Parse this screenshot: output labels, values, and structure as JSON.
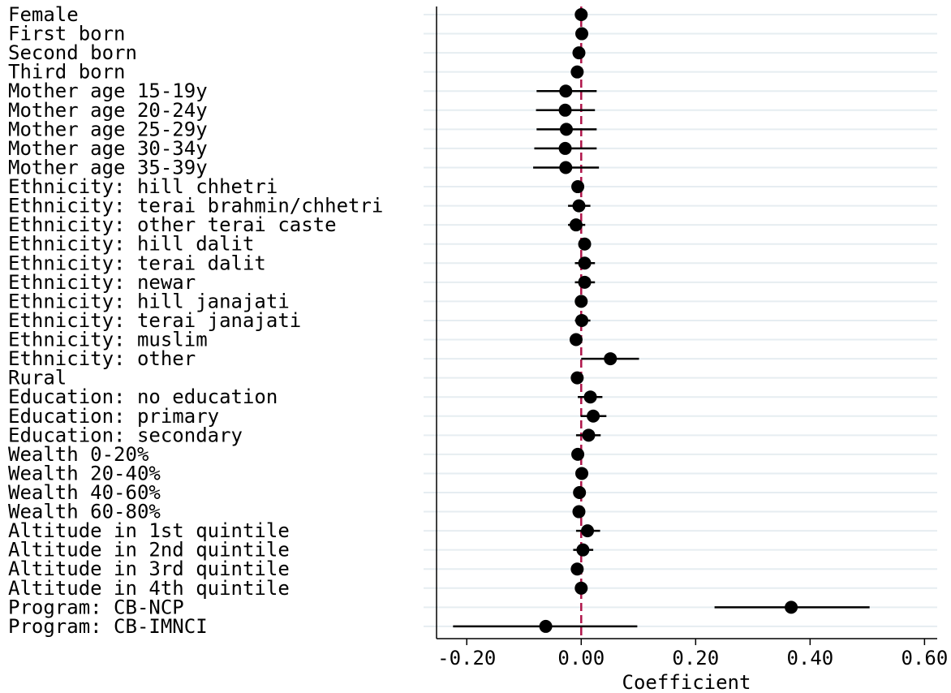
{
  "chart_data": {
    "type": "coefplot",
    "categories": [
      "Female",
      "First born",
      "Second born",
      "Third born",
      "Mother age 15-19y",
      "Mother age 20-24y",
      "Mother age 25-29y",
      "Mother age 30-34y",
      "Mother age 35-39y",
      "Ethnicity: hill chhetri",
      "Ethnicity: terai brahmin/chhetri",
      "Ethnicity: other terai caste",
      "Ethnicity: hill dalit",
      "Ethnicity: terai dalit",
      "Ethnicity: newar",
      "Ethnicity: hill janajati",
      "Ethnicity: terai janajati",
      "Ethnicity: muslim",
      "Ethnicity: other",
      "Rural",
      "Education: no education",
      "Education: primary",
      "Education: secondary",
      "Wealth 0-20%",
      "Wealth 20-40%",
      "Wealth 40-60%",
      "Wealth 60-80%",
      "Altitude in 1st quintile",
      "Altitude in 2nd quintile",
      "Altitude in 3rd quintile",
      "Altitude in 4th quintile",
      "Program: CB-NCP",
      "Program: CB-IMNCI"
    ],
    "values": [
      0.0,
      0.001,
      -0.004,
      -0.007,
      -0.027,
      -0.028,
      -0.026,
      -0.028,
      -0.027,
      -0.006,
      -0.004,
      -0.009,
      0.006,
      0.006,
      0.006,
      0.0,
      0.001,
      -0.009,
      0.051,
      -0.007,
      0.016,
      0.021,
      0.013,
      -0.006,
      0.001,
      -0.003,
      -0.004,
      0.011,
      0.003,
      -0.007,
      0.0,
      0.367,
      -0.062
    ],
    "lower": [
      -0.003,
      -0.002,
      -0.007,
      -0.01,
      -0.078,
      -0.079,
      -0.078,
      -0.082,
      -0.084,
      -0.012,
      -0.023,
      -0.023,
      -0.004,
      -0.011,
      -0.011,
      -0.009,
      -0.011,
      -0.018,
      0.0,
      -0.013,
      -0.006,
      -0.001,
      -0.009,
      -0.014,
      -0.007,
      -0.011,
      -0.013,
      -0.009,
      -0.014,
      -0.017,
      -0.011,
      0.233,
      -0.224
    ],
    "upper": [
      0.003,
      0.004,
      -0.001,
      -0.004,
      0.027,
      0.024,
      0.027,
      0.027,
      0.031,
      0.001,
      0.016,
      0.007,
      0.016,
      0.024,
      0.024,
      0.009,
      0.016,
      0.0,
      0.101,
      -0.001,
      0.037,
      0.044,
      0.034,
      0.003,
      0.01,
      0.006,
      0.004,
      0.033,
      0.021,
      0.003,
      0.011,
      0.504,
      0.098
    ],
    "color": "#000000",
    "refline": 0,
    "refline_color": "#b0154a",
    "xlim": [
      -0.25,
      0.625
    ],
    "xticks": [
      {
        "value": -0.2,
        "label": "-0.20"
      },
      {
        "value": 0,
        "label": "0.00"
      },
      {
        "value": 0.2,
        "label": "0.20"
      },
      {
        "value": 0.4,
        "label": "0.40"
      },
      {
        "value": 0.6,
        "label": "0.60"
      }
    ],
    "x_label": "Coefficient",
    "grid": true
  }
}
